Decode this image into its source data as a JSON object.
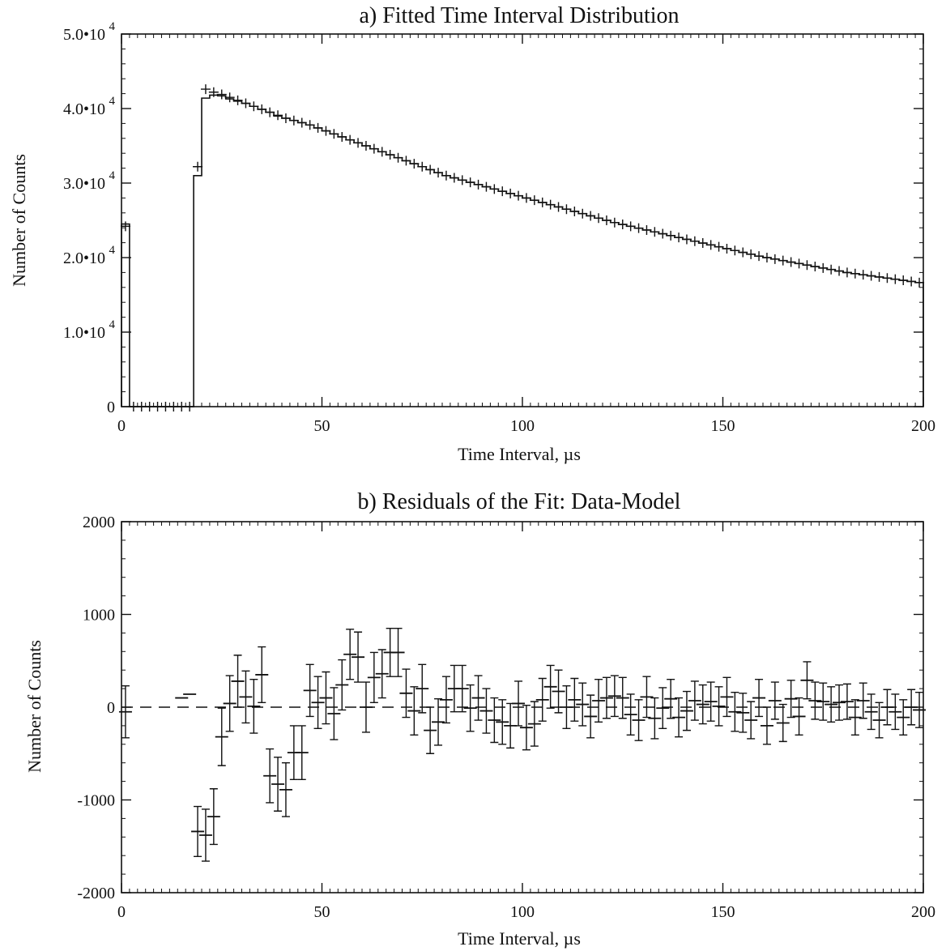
{
  "chart_data": [
    {
      "type": "histogram",
      "title": "a) Fitted Time Interval Distribution",
      "xlabel": "Time Interval, µs",
      "ylabel": "Number of Counts",
      "xlim": [
        0,
        200
      ],
      "ylim": [
        0,
        50000
      ],
      "xticks": [
        0,
        50,
        100,
        150,
        200
      ],
      "xtick_labels": [
        "0",
        "50",
        "100",
        "150",
        "200"
      ],
      "yticks": [
        0,
        10000,
        20000,
        30000,
        40000,
        50000
      ],
      "ytick_labels": [
        {
          "mantissa": "0",
          "exponent": ""
        },
        {
          "mantissa": "1.0•10",
          "exponent": "4"
        },
        {
          "mantissa": "2.0•10",
          "exponent": "4"
        },
        {
          "mantissa": "3.0•10",
          "exponent": "4"
        },
        {
          "mantissa": "4.0•10",
          "exponent": "4"
        },
        {
          "mantissa": "5.0•10",
          "exponent": "4"
        }
      ],
      "bin_width": 2,
      "series": [
        {
          "style": "histogram-step",
          "x": [
            0,
            2,
            4,
            6,
            8,
            10,
            12,
            14,
            16,
            18,
            20,
            22,
            24,
            26,
            28,
            30,
            32,
            34,
            36,
            38,
            40,
            42,
            44,
            46,
            48,
            50,
            52,
            54,
            56,
            58,
            60,
            62,
            64,
            66,
            68,
            70,
            72,
            74,
            76,
            78,
            80,
            82,
            84,
            86,
            88,
            90,
            92,
            94,
            96,
            98,
            100,
            102,
            104,
            106,
            108,
            110,
            112,
            114,
            116,
            118,
            120,
            122,
            124,
            126,
            128,
            130,
            132,
            134,
            136,
            138,
            140,
            142,
            144,
            146,
            148,
            150,
            152,
            154,
            156,
            158,
            160,
            162,
            164,
            166,
            168,
            170,
            172,
            174,
            176,
            178,
            180,
            182,
            184,
            186,
            188,
            190,
            192,
            194,
            196,
            198
          ],
          "values": [
            24500,
            0,
            0,
            0,
            0,
            0,
            0,
            0,
            0,
            31000,
            41400,
            41800,
            41700,
            41300,
            41000,
            40700,
            40300,
            39900,
            39500,
            39000,
            38700,
            38400,
            38100,
            37800,
            37400,
            37000,
            36600,
            36200,
            35800,
            35400,
            35000,
            34600,
            34200,
            33800,
            33400,
            33000,
            32600,
            32200,
            31800,
            31400,
            31000,
            30700,
            30400,
            30100,
            29800,
            29500,
            29200,
            28900,
            28600,
            28300,
            28000,
            27700,
            27400,
            27100,
            26800,
            26500,
            26200,
            25900,
            25600,
            25300,
            25000,
            24700,
            24450,
            24200,
            23950,
            23700,
            23450,
            23200,
            22950,
            22700,
            22450,
            22200,
            21950,
            21700,
            21450,
            21200,
            20950,
            20700,
            20450,
            20200,
            20000,
            19800,
            19600,
            19400,
            19200,
            19000,
            18800,
            18600,
            18400,
            18200,
            18000,
            17850,
            17700,
            17550,
            17400,
            17250,
            17100,
            16950,
            16800,
            16650
          ]
        },
        {
          "style": "plus-markers",
          "x": [
            1,
            3,
            5,
            7,
            9,
            11,
            13,
            15,
            17,
            19,
            21,
            23,
            25,
            27,
            29,
            31,
            33,
            35,
            37,
            39,
            41,
            43,
            45,
            47,
            49,
            51,
            53,
            55,
            57,
            59,
            61,
            63,
            65,
            67,
            69,
            71,
            73,
            75,
            77,
            79,
            81,
            83,
            85,
            87,
            89,
            91,
            93,
            95,
            97,
            99,
            101,
            103,
            105,
            107,
            109,
            111,
            113,
            115,
            117,
            119,
            121,
            123,
            125,
            127,
            129,
            131,
            133,
            135,
            137,
            139,
            141,
            143,
            145,
            147,
            149,
            151,
            153,
            155,
            157,
            159,
            161,
            163,
            165,
            167,
            169,
            171,
            173,
            175,
            177,
            179,
            181,
            183,
            185,
            187,
            189,
            191,
            193,
            195,
            197,
            199
          ],
          "values": [
            24200,
            0,
            0,
            0,
            0,
            0,
            0,
            0,
            0,
            32200,
            42600,
            42200,
            41900,
            41500,
            41100,
            40700,
            40300,
            39900,
            39500,
            39100,
            38700,
            38400,
            38100,
            37800,
            37400,
            37000,
            36600,
            36200,
            35800,
            35400,
            35000,
            34600,
            34200,
            33800,
            33400,
            33000,
            32600,
            32200,
            31800,
            31400,
            31000,
            30700,
            30400,
            30100,
            29800,
            29500,
            29200,
            28900,
            28600,
            28300,
            28000,
            27700,
            27400,
            27100,
            26800,
            26500,
            26200,
            25900,
            25600,
            25300,
            25000,
            24700,
            24450,
            24200,
            23950,
            23700,
            23450,
            23200,
            22950,
            22700,
            22450,
            22200,
            21950,
            21700,
            21450,
            21200,
            20950,
            20700,
            20450,
            20200,
            20000,
            19800,
            19600,
            19400,
            19200,
            19000,
            18800,
            18600,
            18400,
            18200,
            18000,
            17850,
            17700,
            17550,
            17400,
            17250,
            17100,
            16950,
            16800,
            16650
          ]
        }
      ]
    },
    {
      "type": "scatter",
      "title": "b) Residuals of the Fit: Data-Model",
      "xlabel": "Time Interval, µs",
      "ylabel": "Number of Counts",
      "xlim": [
        0,
        200
      ],
      "ylim": [
        -2000,
        2000
      ],
      "xticks": [
        0,
        50,
        100,
        150,
        200
      ],
      "xtick_labels": [
        "0",
        "50",
        "100",
        "150",
        "200"
      ],
      "yticks": [
        -2000,
        -1000,
        0,
        1000,
        2000
      ],
      "ytick_labels": [
        "-2000",
        "-1000",
        "0",
        "1000",
        "2000"
      ],
      "zero_line": "dashed",
      "series": [
        {
          "style": "error-bars",
          "x": [
            1,
            15,
            17,
            19,
            21,
            23,
            25,
            27,
            29,
            31,
            33,
            35,
            37,
            39,
            41,
            43,
            45,
            47,
            49,
            51,
            53,
            55,
            57,
            59,
            61,
            63,
            65,
            67,
            69,
            71,
            73,
            75,
            77,
            79,
            81,
            83,
            85,
            87,
            89,
            91,
            93,
            95,
            97,
            99,
            101,
            103,
            105,
            107,
            109,
            111,
            113,
            115,
            117,
            119,
            121,
            123,
            125,
            127,
            129,
            131,
            133,
            135,
            137,
            139,
            141,
            143,
            145,
            147,
            149,
            151,
            153,
            155,
            157,
            159,
            161,
            163,
            165,
            167,
            169,
            171,
            173,
            175,
            177,
            179,
            181,
            183,
            185,
            187,
            189,
            191,
            193,
            195,
            197,
            199
          ],
          "values": [
            -50,
            100,
            140,
            -1340,
            -1380,
            -1180,
            -320,
            40,
            280,
            110,
            10,
            350,
            -740,
            -830,
            -890,
            -490,
            -490,
            180,
            50,
            100,
            -70,
            240,
            570,
            540,
            0,
            320,
            360,
            590,
            590,
            150,
            -40,
            200,
            -250,
            -160,
            80,
            200,
            200,
            -10,
            100,
            -40,
            -140,
            -160,
            -200,
            40,
            -220,
            -180,
            80,
            220,
            170,
            0,
            80,
            30,
            -100,
            70,
            100,
            120,
            100,
            -80,
            -140,
            110,
            -120,
            -10,
            90,
            -110,
            -40,
            70,
            30,
            60,
            10,
            110,
            -50,
            -60,
            -140,
            100,
            -200,
            70,
            -170,
            90,
            -100,
            290,
            70,
            60,
            30,
            50,
            60,
            -110,
            70,
            -50,
            -140,
            0,
            -50,
            -110,
            0,
            -30
          ],
          "errors": [
            280,
            0,
            0,
            270,
            280,
            300,
            310,
            300,
            280,
            280,
            290,
            300,
            290,
            290,
            290,
            290,
            290,
            280,
            280,
            280,
            280,
            270,
            270,
            270,
            270,
            270,
            260,
            260,
            260,
            260,
            260,
            260,
            250,
            250,
            250,
            250,
            250,
            250,
            240,
            240,
            240,
            240,
            240,
            240,
            240,
            240,
            230,
            230,
            230,
            230,
            230,
            230,
            230,
            230,
            220,
            220,
            220,
            220,
            220,
            220,
            220,
            220,
            210,
            210,
            210,
            210,
            210,
            210,
            210,
            210,
            210,
            210,
            200,
            200,
            200,
            200,
            200,
            200,
            200,
            200,
            200,
            200,
            190,
            190,
            190,
            190,
            190,
            190,
            190,
            190,
            190,
            190,
            190,
            190
          ]
        }
      ]
    }
  ]
}
